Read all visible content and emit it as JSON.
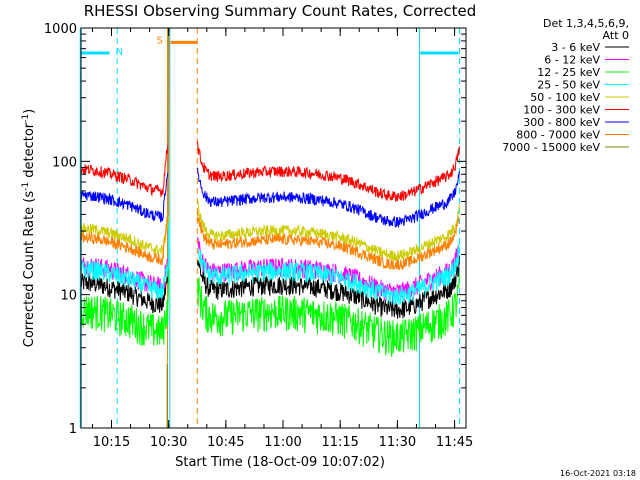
{
  "chart_data": {
    "type": "line",
    "title": "RHESSI Observing Summary Count Rates, Corrected",
    "xlabel": "Start Time (18-Oct-09 10:07:02)",
    "ylabel_main": "Corrected Count Rate (s",
    "ylabel_exp1": "-1",
    "ylabel_mid": " detector",
    "ylabel_exp2": "-1",
    "ylabel_end": ")",
    "yscale": "log",
    "xlim_min": [
      607,
      708
    ],
    "ylim": [
      1,
      1000
    ],
    "x_ticks": [
      {
        "min": 615,
        "label": "10:15"
      },
      {
        "min": 630,
        "label": "10:30"
      },
      {
        "min": 645,
        "label": "10:45"
      },
      {
        "min": 660,
        "label": "11:00"
      },
      {
        "min": 675,
        "label": "11:15"
      },
      {
        "min": 690,
        "label": "11:30"
      },
      {
        "min": 705,
        "label": "11:45"
      }
    ],
    "y_ticks": [
      {
        "value": 1,
        "label": "1"
      },
      {
        "value": 10,
        "label": "10"
      },
      {
        "value": 100,
        "label": "100"
      },
      {
        "value": 1000,
        "label": "1000"
      }
    ],
    "legend_header": [
      "Det 1,3,4,5,6,9,",
      "Att 0"
    ],
    "series": [
      {
        "name": "3 - 6 keV",
        "color": "#000000",
        "level": 11
      },
      {
        "name": "6 - 12 keV",
        "color": "#ff00ff",
        "level": 15
      },
      {
        "name": "12 - 25 keV",
        "color": "#00ff00",
        "level": 7
      },
      {
        "name": "25 - 50 keV",
        "color": "#00ffff",
        "level": 14
      },
      {
        "name": "50 - 100 keV",
        "color": "#cccc00",
        "level": 28
      },
      {
        "name": "100 - 300 keV",
        "color": "#ff0000",
        "level": 78
      },
      {
        "name": "300 - 800 keV",
        "color": "#0000ff",
        "level": 50
      },
      {
        "name": "800 - 7000 keV",
        "color": "#ff8000",
        "level": 24
      },
      {
        "name": "7000 - 15000 keV",
        "color": "#808000",
        "level": 0
      }
    ],
    "flags": {
      "night": {
        "label": "N",
        "color": "#00e0ff",
        "segments": [
          [
            607,
            614.5
          ],
          [
            696,
            706
          ]
        ],
        "value": 650
      },
      "saa": {
        "label": "S",
        "color": "#ff8000",
        "segments": [
          [
            630.5,
            637.5
          ]
        ],
        "value": 780
      },
      "cyan_lines": [
        606.8,
        630.3,
        695.8
      ],
      "cyan_dashed_lines": [
        616.5,
        706.3
      ],
      "orange_lines": [
        629.7
      ],
      "orange_dashed_lines": [
        637.5
      ]
    },
    "data_gap": [
      630.2,
      637.6
    ],
    "timestamp": "16-Oct-2021 03:18"
  }
}
